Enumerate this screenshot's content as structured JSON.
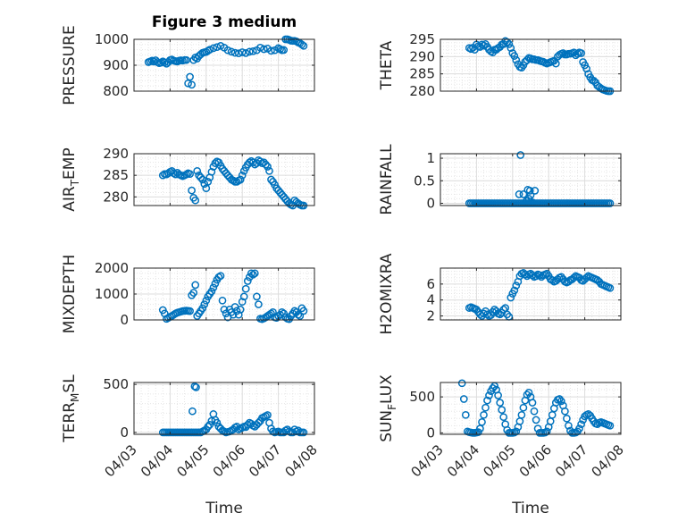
{
  "title": "Figure 3 medium",
  "xlabel": "Time",
  "x_ticks": [
    "04/03",
    "04/04",
    "04/05",
    "04/06",
    "04/07",
    "04/08"
  ],
  "marker_color": "#0072BD",
  "chart_data": [
    {
      "type": "scatter",
      "name": "PRESSURE",
      "ylabel": "PRESSURE",
      "ylabel_sub": "",
      "ylim": [
        800,
        1000
      ],
      "yticks": [
        800,
        900,
        1000
      ],
      "xlim": [
        0,
        5
      ],
      "grid": true,
      "x": [
        0.4,
        0.45,
        0.5,
        0.55,
        0.6,
        0.65,
        0.7,
        0.75,
        0.8,
        0.85,
        0.9,
        0.95,
        1.0,
        1.05,
        1.1,
        1.15,
        1.2,
        1.25,
        1.3,
        1.35,
        1.4,
        1.45,
        1.5,
        1.55,
        1.6,
        1.65,
        1.7,
        1.75,
        1.8,
        1.85,
        1.9,
        1.95,
        2.0,
        2.05,
        2.1,
        2.2,
        2.3,
        2.4,
        2.5,
        2.6,
        2.7,
        2.8,
        2.9,
        3.0,
        3.1,
        3.2,
        3.3,
        3.4,
        3.5,
        3.6,
        3.7,
        3.8,
        3.9,
        4.0,
        4.05,
        4.1,
        4.15,
        4.2,
        4.25,
        4.3,
        4.35,
        4.4,
        4.45,
        4.5,
        4.55,
        4.6,
        4.65,
        4.7
      ],
      "y": [
        912,
        915,
        918,
        914,
        919,
        912,
        908,
        910,
        915,
        911,
        906,
        912,
        920,
        922,
        918,
        916,
        914,
        918,
        919,
        918,
        920,
        920,
        830,
        855,
        825,
        920,
        930,
        926,
        936,
        942,
        948,
        950,
        951,
        956,
        960,
        966,
        970,
        975,
        968,
        958,
        952,
        948,
        946,
        950,
        947,
        952,
        954,
        958,
        968,
        962,
        964,
        956,
        958,
        966,
        962,
        958,
        959,
        1000,
        1000,
        998,
        995,
        994,
        994,
        992,
        988,
        985,
        980,
        975
      ]
    },
    {
      "type": "scatter",
      "name": "THETA",
      "ylabel": "THETA",
      "ylabel_sub": "",
      "ylim": [
        280,
        295
      ],
      "yticks": [
        280,
        285,
        290,
        295
      ],
      "xlim": [
        0,
        5
      ],
      "grid": true,
      "x": [
        0.8,
        0.85,
        0.9,
        0.95,
        1.0,
        1.05,
        1.1,
        1.15,
        1.2,
        1.25,
        1.3,
        1.35,
        1.4,
        1.45,
        1.5,
        1.55,
        1.6,
        1.65,
        1.7,
        1.75,
        1.8,
        1.85,
        1.9,
        1.95,
        2.0,
        2.05,
        2.1,
        2.15,
        2.2,
        2.25,
        2.3,
        2.35,
        2.4,
        2.45,
        2.5,
        2.55,
        2.6,
        2.65,
        2.7,
        2.75,
        2.8,
        2.85,
        2.9,
        2.95,
        3.0,
        3.05,
        3.1,
        3.15,
        3.2,
        3.25,
        3.3,
        3.35,
        3.4,
        3.45,
        3.5,
        3.55,
        3.6,
        3.65,
        3.7,
        3.75,
        3.8,
        3.85,
        3.9,
        3.95,
        4.0,
        4.05,
        4.1,
        4.15,
        4.2,
        4.25,
        4.3,
        4.35,
        4.4,
        4.45,
        4.5,
        4.55,
        4.6,
        4.65,
        4.7
      ],
      "y": [
        292.5,
        292.2,
        292.6,
        292.0,
        293.5,
        293.0,
        292.8,
        293.5,
        293.2,
        293.6,
        292.8,
        292.0,
        291.5,
        291.2,
        292.0,
        292.0,
        292.5,
        292.8,
        293.5,
        293.6,
        294.5,
        294.2,
        293.6,
        292.5,
        291.0,
        290.2,
        289.0,
        287.8,
        287.0,
        286.8,
        287.5,
        288.5,
        289.0,
        289.6,
        289.5,
        289.2,
        289.2,
        289.0,
        289.0,
        288.8,
        288.6,
        288.5,
        288.2,
        288.0,
        288.2,
        288.4,
        288.6,
        288.8,
        288.0,
        290.0,
        290.5,
        290.8,
        291.0,
        290.6,
        290.6,
        290.8,
        290.8,
        291.0,
        291.2,
        290.4,
        290.8,
        291.2,
        291.0,
        288.4,
        287.5,
        286.5,
        285.0,
        284.0,
        283.2,
        283.0,
        282.5,
        281.6,
        281.2,
        280.8,
        280.5,
        280.3,
        280.1,
        280.0,
        280.0
      ]
    },
    {
      "type": "scatter",
      "name": "AIR_TEMP",
      "ylabel": "AIR",
      "ylabel_sub": "T",
      "ylabel_after": "EMP",
      "ylim": [
        278,
        290
      ],
      "yticks": [
        280,
        285,
        290
      ],
      "xlim": [
        0,
        5
      ],
      "grid": true,
      "x": [
        0.8,
        0.85,
        0.9,
        0.95,
        1.0,
        1.05,
        1.1,
        1.15,
        1.2,
        1.25,
        1.3,
        1.35,
        1.4,
        1.45,
        1.5,
        1.55,
        1.6,
        1.65,
        1.7,
        1.75,
        1.8,
        1.85,
        1.9,
        1.95,
        2.0,
        2.05,
        2.1,
        2.15,
        2.2,
        2.25,
        2.3,
        2.35,
        2.4,
        2.45,
        2.5,
        2.55,
        2.6,
        2.65,
        2.7,
        2.75,
        2.8,
        2.85,
        2.9,
        2.95,
        3.0,
        3.05,
        3.1,
        3.15,
        3.2,
        3.25,
        3.3,
        3.35,
        3.4,
        3.45,
        3.5,
        3.55,
        3.6,
        3.65,
        3.7,
        3.75,
        3.8,
        3.85,
        3.9,
        3.95,
        4.0,
        4.05,
        4.1,
        4.15,
        4.2,
        4.25,
        4.3,
        4.35,
        4.4,
        4.45,
        4.5,
        4.55,
        4.6,
        4.65,
        4.7
      ],
      "y": [
        285.0,
        285.3,
        285.2,
        285.5,
        285.8,
        286.0,
        285.5,
        285.2,
        285.6,
        285.2,
        285.0,
        284.8,
        285.0,
        285.2,
        285.5,
        285.3,
        281.5,
        279.8,
        279.2,
        286.0,
        285.0,
        284.5,
        284.0,
        283.0,
        282.0,
        283.5,
        284.5,
        285.8,
        287.0,
        287.8,
        288.2,
        288.0,
        287.2,
        286.5,
        286.0,
        285.5,
        285.0,
        284.5,
        284.0,
        283.8,
        283.5,
        283.5,
        283.8,
        284.0,
        285.0,
        286.0,
        286.8,
        287.5,
        288.0,
        288.3,
        288.0,
        287.5,
        287.8,
        288.5,
        288.2,
        287.8,
        288.0,
        287.5,
        287.0,
        286.0,
        284.0,
        283.5,
        282.8,
        282.0,
        281.5,
        281.0,
        280.5,
        280.0,
        279.5,
        279.0,
        278.5,
        278.2,
        278.0,
        279.2,
        278.8,
        278.5,
        278.2,
        278.0,
        278.0
      ]
    },
    {
      "type": "scatter",
      "name": "RAINFALL",
      "ylabel": "RAINFALL",
      "ylabel_sub": "",
      "ylim": [
        -0.05,
        1.1
      ],
      "yticks": [
        0,
        0.5,
        1
      ],
      "xlim": [
        0,
        5
      ],
      "grid": true,
      "x": [
        0.8,
        0.85,
        0.9,
        0.95,
        1.0,
        1.05,
        1.1,
        1.15,
        1.2,
        1.25,
        1.3,
        1.35,
        1.4,
        1.45,
        1.5,
        1.55,
        1.6,
        1.65,
        1.7,
        1.75,
        1.8,
        1.85,
        1.9,
        1.95,
        2.0,
        2.05,
        2.1,
        2.15,
        2.2,
        2.25,
        2.3,
        2.35,
        2.4,
        2.45,
        2.5,
        2.55,
        2.6,
        2.65,
        2.7,
        2.75,
        2.8,
        2.85,
        2.9,
        2.95,
        3.0,
        3.05,
        3.1,
        3.15,
        3.2,
        3.25,
        3.3,
        3.35,
        3.4,
        3.45,
        3.5,
        3.55,
        3.6,
        3.65,
        3.7,
        3.75,
        3.8,
        3.85,
        3.9,
        3.95,
        4.0,
        4.05,
        4.1,
        4.15,
        4.2,
        4.25,
        4.3,
        4.35,
        4.4,
        4.45,
        4.5,
        4.55,
        4.6,
        4.65,
        4.7,
        2.18,
        2.22,
        2.3,
        2.38,
        2.42,
        2.48,
        2.55,
        2.62,
        2.5,
        2.45
      ],
      "y": [
        0,
        0,
        0,
        0,
        0,
        0,
        0,
        0,
        0,
        0,
        0,
        0,
        0,
        0,
        0,
        0,
        0,
        0,
        0,
        0,
        0,
        0,
        0,
        0,
        0,
        0,
        0,
        0,
        0,
        0,
        0,
        0,
        0,
        0,
        0,
        0,
        0,
        0,
        0,
        0,
        0,
        0,
        0,
        0,
        0,
        0,
        0,
        0,
        0,
        0,
        0,
        0,
        0,
        0,
        0,
        0,
        0,
        0,
        0,
        0,
        0,
        0,
        0,
        0,
        0,
        0,
        0,
        0,
        0,
        0,
        0,
        0,
        0,
        0,
        0,
        0,
        0,
        0,
        0,
        0.2,
        1.07,
        0.2,
        0.05,
        0.3,
        0.28,
        0.02,
        0.28,
        0.18,
        0.1
      ]
    },
    {
      "type": "scatter",
      "name": "MIXDEPTH",
      "ylabel": "MIXDEPTH",
      "ylabel_sub": "",
      "ylim": [
        0,
        2000
      ],
      "yticks": [
        0,
        1000,
        2000
      ],
      "xlim": [
        0,
        5
      ],
      "grid": true,
      "x": [
        0.8,
        0.85,
        0.9,
        0.95,
        1.0,
        1.05,
        1.1,
        1.15,
        1.2,
        1.25,
        1.3,
        1.35,
        1.4,
        1.45,
        1.5,
        1.55,
        1.6,
        1.65,
        1.7,
        1.75,
        1.8,
        1.85,
        1.9,
        1.95,
        2.0,
        2.05,
        2.1,
        2.15,
        2.2,
        2.25,
        2.3,
        2.35,
        2.4,
        2.45,
        2.5,
        2.55,
        2.6,
        2.65,
        2.7,
        2.75,
        2.8,
        2.85,
        2.9,
        2.95,
        3.0,
        3.05,
        3.1,
        3.15,
        3.2,
        3.25,
        3.3,
        3.35,
        3.4,
        3.45,
        3.5,
        3.55,
        3.6,
        3.65,
        3.7,
        3.75,
        3.8,
        3.85,
        3.9,
        3.95,
        4.0,
        4.05,
        4.1,
        4.15,
        4.2,
        4.25,
        4.3,
        4.35,
        4.4,
        4.45,
        4.5,
        4.55,
        4.6,
        4.65,
        4.7
      ],
      "y": [
        380,
        250,
        40,
        80,
        120,
        150,
        200,
        250,
        280,
        300,
        320,
        340,
        350,
        360,
        350,
        340,
        950,
        1050,
        1350,
        150,
        250,
        350,
        450,
        600,
        750,
        900,
        1000,
        1100,
        1250,
        1400,
        1550,
        1650,
        1700,
        750,
        400,
        250,
        100,
        400,
        300,
        200,
        500,
        350,
        200,
        400,
        700,
        900,
        1200,
        1500,
        1650,
        1800,
        1750,
        1800,
        900,
        600,
        50,
        30,
        60,
        100,
        150,
        200,
        250,
        300,
        100,
        80,
        150,
        200,
        300,
        250,
        100,
        50,
        30,
        150,
        250,
        350,
        300,
        200,
        150,
        450,
        350
      ]
    },
    {
      "type": "scatter",
      "name": "H2OMIXRA",
      "ylabel": "H2OMIXRA",
      "ylabel_sub": "",
      "ylim": [
        1.5,
        8
      ],
      "yticks": [
        2,
        4,
        6
      ],
      "xlim": [
        0,
        5
      ],
      "grid": true,
      "x": [
        0.8,
        0.85,
        0.9,
        0.95,
        1.0,
        1.05,
        1.1,
        1.15,
        1.2,
        1.25,
        1.3,
        1.35,
        1.4,
        1.45,
        1.5,
        1.55,
        1.6,
        1.65,
        1.7,
        1.75,
        1.8,
        1.85,
        1.9,
        1.95,
        2.0,
        2.05,
        2.1,
        2.15,
        2.2,
        2.25,
        2.3,
        2.35,
        2.4,
        2.45,
        2.5,
        2.55,
        2.6,
        2.65,
        2.7,
        2.75,
        2.8,
        2.85,
        2.9,
        2.95,
        3.0,
        3.05,
        3.1,
        3.15,
        3.2,
        3.25,
        3.3,
        3.35,
        3.4,
        3.45,
        3.5,
        3.55,
        3.6,
        3.65,
        3.7,
        3.75,
        3.8,
        3.85,
        3.9,
        3.95,
        4.0,
        4.05,
        4.1,
        4.15,
        4.2,
        4.25,
        4.3,
        4.35,
        4.4,
        4.45,
        4.5,
        4.55,
        4.6,
        4.65,
        4.7
      ],
      "y": [
        3.0,
        3.1,
        3.0,
        2.9,
        2.8,
        2.5,
        2.2,
        2.0,
        2.3,
        2.6,
        2.2,
        2.0,
        2.1,
        2.5,
        2.8,
        2.6,
        2.3,
        2.2,
        2.4,
        2.8,
        3.0,
        2.2,
        1.9,
        4.3,
        4.8,
        5.2,
        5.8,
        6.3,
        7.0,
        7.3,
        7.4,
        7.2,
        7.0,
        7.2,
        7.3,
        7.1,
        6.9,
        7.0,
        7.2,
        7.1,
        6.9,
        7.1,
        7.2,
        7.3,
        7.0,
        6.6,
        6.5,
        6.3,
        6.4,
        6.6,
        6.8,
        6.9,
        6.6,
        6.3,
        6.2,
        6.3,
        6.5,
        6.6,
        6.8,
        7.0,
        6.9,
        6.8,
        6.5,
        6.4,
        6.6,
        6.8,
        7.0,
        6.9,
        6.8,
        6.7,
        6.6,
        6.5,
        6.3,
        6.0,
        5.9,
        5.8,
        5.7,
        5.6,
        5.5
      ]
    },
    {
      "type": "scatter",
      "name": "TERR_MSL",
      "ylabel": "TERR",
      "ylabel_sub": "M",
      "ylabel_after": "SL",
      "ylim": [
        -20,
        520
      ],
      "yticks": [
        0,
        500
      ],
      "xlim": [
        0,
        5
      ],
      "grid": true,
      "x": [
        0.8,
        0.85,
        0.9,
        0.95,
        1.0,
        1.05,
        1.1,
        1.15,
        1.2,
        1.25,
        1.3,
        1.35,
        1.4,
        1.45,
        1.5,
        1.55,
        1.6,
        1.65,
        1.7,
        1.75,
        1.8,
        1.85,
        1.9,
        1.95,
        2.0,
        2.05,
        2.1,
        2.15,
        2.2,
        2.25,
        2.3,
        2.35,
        2.4,
        2.45,
        2.5,
        2.55,
        2.6,
        2.65,
        2.7,
        2.75,
        2.8,
        2.85,
        2.9,
        2.95,
        3.0,
        3.05,
        3.1,
        3.15,
        3.2,
        3.25,
        3.3,
        3.35,
        3.4,
        3.45,
        3.5,
        3.55,
        3.6,
        3.65,
        3.7,
        3.75,
        3.8,
        3.85,
        3.9,
        3.95,
        4.0,
        4.05,
        4.1,
        4.15,
        4.2,
        4.25,
        4.3,
        4.35,
        4.4,
        4.45,
        4.5,
        4.55,
        4.6,
        4.65,
        4.7,
        1.62,
        1.68,
        1.72
      ],
      "y": [
        0,
        0,
        0,
        0,
        0,
        0,
        0,
        0,
        0,
        0,
        0,
        0,
        0,
        0,
        0,
        0,
        0,
        0,
        0,
        0,
        0,
        0,
        10,
        20,
        30,
        60,
        80,
        120,
        190,
        130,
        100,
        60,
        40,
        20,
        10,
        0,
        5,
        10,
        20,
        30,
        50,
        60,
        30,
        40,
        50,
        60,
        55,
        80,
        100,
        90,
        70,
        60,
        80,
        100,
        120,
        150,
        160,
        170,
        180,
        100,
        40,
        10,
        0,
        5,
        10,
        0,
        0,
        0,
        20,
        30,
        10,
        0,
        0,
        30,
        10,
        20,
        0,
        0,
        0,
        220,
        480,
        470
      ]
    },
    {
      "type": "scatter",
      "name": "SUN_FLUX",
      "ylabel": "SUN",
      "ylabel_sub": "F",
      "ylabel_after": "LUX",
      "ylim": [
        -20,
        700
      ],
      "yticks": [
        0,
        500
      ],
      "xlim": [
        0,
        5
      ],
      "grid": true,
      "x": [
        0.6,
        0.65,
        0.7,
        0.75,
        0.8,
        0.85,
        0.9,
        0.95,
        1.0,
        1.05,
        1.1,
        1.15,
        1.2,
        1.25,
        1.3,
        1.35,
        1.4,
        1.45,
        1.5,
        1.55,
        1.6,
        1.65,
        1.7,
        1.75,
        1.8,
        1.85,
        1.9,
        1.95,
        2.0,
        2.05,
        2.1,
        2.15,
        2.2,
        2.25,
        2.3,
        2.35,
        2.4,
        2.45,
        2.5,
        2.55,
        2.6,
        2.65,
        2.7,
        2.75,
        2.8,
        2.85,
        2.9,
        2.95,
        3.0,
        3.05,
        3.1,
        3.15,
        3.2,
        3.25,
        3.3,
        3.35,
        3.4,
        3.45,
        3.5,
        3.55,
        3.6,
        3.65,
        3.7,
        3.75,
        3.8,
        3.85,
        3.9,
        3.95,
        4.0,
        4.05,
        4.1,
        4.15,
        4.2,
        4.25,
        4.3,
        4.35,
        4.4,
        4.45,
        4.5,
        4.55,
        4.6,
        4.65,
        4.7
      ],
      "y": [
        690,
        470,
        250,
        20,
        10,
        5,
        0,
        0,
        5,
        10,
        60,
        150,
        250,
        350,
        450,
        520,
        580,
        620,
        650,
        600,
        520,
        420,
        320,
        220,
        120,
        40,
        0,
        0,
        0,
        5,
        20,
        80,
        160,
        250,
        350,
        450,
        530,
        560,
        500,
        420,
        300,
        180,
        60,
        0,
        0,
        0,
        5,
        20,
        80,
        160,
        250,
        340,
        420,
        460,
        470,
        440,
        380,
        300,
        200,
        100,
        30,
        0,
        0,
        5,
        20,
        60,
        120,
        180,
        230,
        250,
        260,
        240,
        200,
        160,
        130,
        120,
        140,
        150,
        140,
        130,
        120,
        110,
        100
      ]
    }
  ]
}
